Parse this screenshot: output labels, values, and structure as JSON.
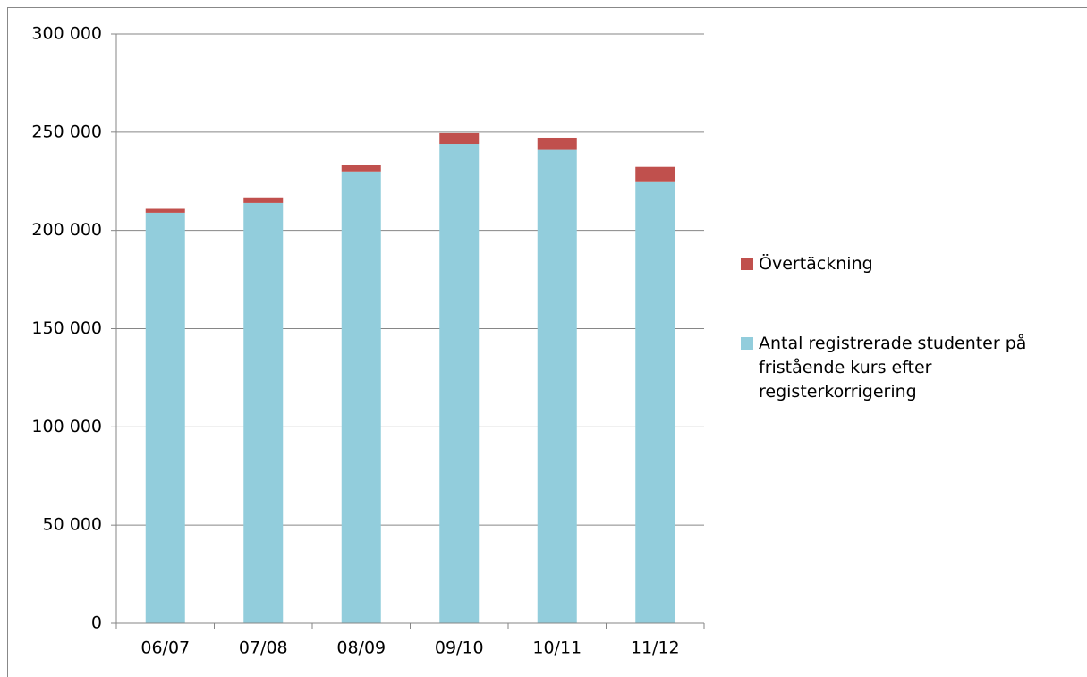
{
  "chart_data": {
    "type": "stacked_bar",
    "categories": [
      "06/07",
      "07/08",
      "08/09",
      "09/10",
      "10/11",
      "11/12"
    ],
    "series": [
      {
        "name": "Antal registrerade studenter på fristående kurs efter registerkorrigering",
        "color": "#92cddc",
        "values": [
          209000,
          214000,
          230000,
          244000,
          241000,
          225000
        ]
      },
      {
        "name": "Övertäckning",
        "color": "#c0504d",
        "values": [
          2000,
          2800,
          3300,
          5500,
          6200,
          7300
        ]
      }
    ],
    "ylim": [
      0,
      300000
    ],
    "yticks": [
      0,
      {
        "value": 50000,
        "label": "50 000"
      },
      {
        "value": 100000,
        "label": "100 000"
      },
      {
        "value": 150000,
        "label": "150 000"
      },
      {
        "value": 200000,
        "label": "200 000"
      },
      {
        "value": 250000,
        "label": "250 000"
      },
      {
        "value": 300000,
        "label": "300 000"
      }
    ],
    "grid": true,
    "legend": "right"
  }
}
